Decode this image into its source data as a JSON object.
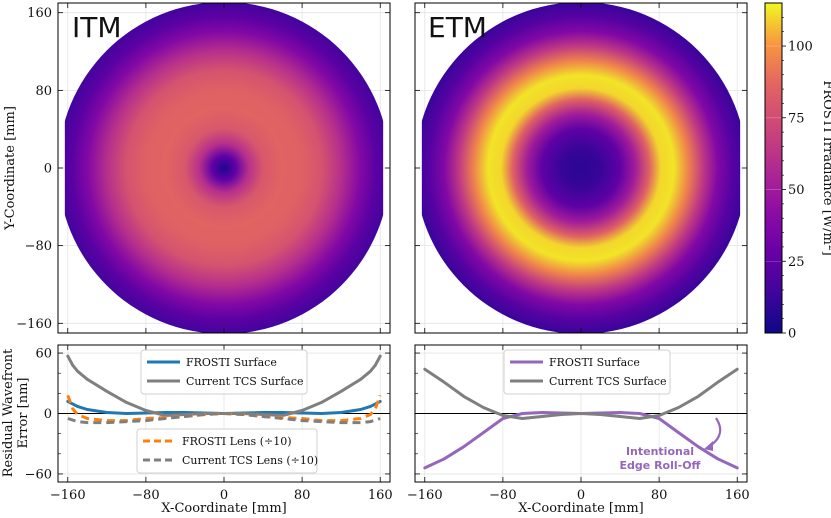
{
  "chart_data": [
    {
      "type": "heatmap",
      "panel": "itm",
      "title": "ITM",
      "ylabel": "Y-Coordinate [mm]",
      "xlim": [
        -170,
        170
      ],
      "ylim": [
        -170,
        170
      ],
      "yticks": [
        -160,
        -80,
        0,
        80,
        160
      ],
      "ytick_labels": [
        "−160",
        "−80",
        "0",
        "80",
        "160"
      ],
      "aperture_radius_mm": 170,
      "flat_halfwidth_mm": 163,
      "radial_profile": {
        "r": [
          0,
          12,
          25,
          40,
          60,
          80,
          100,
          120,
          140,
          155,
          170
        ],
        "irradiance": [
          5,
          25,
          60,
          80,
          86,
          85,
          78,
          60,
          38,
          24,
          15
        ]
      },
      "grid": true
    },
    {
      "type": "heatmap",
      "panel": "etm",
      "title": "ETM",
      "xlim": [
        -170,
        170
      ],
      "ylim": [
        -170,
        170
      ],
      "aperture_radius_mm": 170,
      "flat_halfwidth_mm": 163,
      "radial_profile": {
        "r": [
          0,
          20,
          40,
          55,
          70,
          82,
          95,
          110,
          125,
          140,
          155,
          170
        ],
        "irradiance": [
          8,
          12,
          25,
          50,
          85,
          110,
          112,
          95,
          65,
          38,
          22,
          12
        ]
      },
      "grid": true
    },
    {
      "type": "colorbar",
      "label": "FROSTI Irradiance [W/m²]",
      "label_main": "FROSTI Irradiance [W/m",
      "label_sup": "2",
      "label_end": "]",
      "range": [
        0,
        115
      ],
      "ticks": [
        0,
        25,
        50,
        75,
        100
      ],
      "colormap": "plasma"
    },
    {
      "type": "line",
      "panel": "itm-residual",
      "ylabel_line1": "Residual Wavefront",
      "ylabel_line2": "Error [nm]",
      "xlabel": "X-Coordinate [mm]",
      "xlim": [
        -170,
        170
      ],
      "ylim": [
        -68,
        68
      ],
      "xticks": [
        -160,
        -80,
        0,
        80,
        160
      ],
      "xtick_labels": [
        "−160",
        "−80",
        "0",
        "80",
        "160"
      ],
      "yticks": [
        -60,
        0,
        60
      ],
      "ytick_labels": [
        "−60",
        "0",
        "60"
      ],
      "zero_line": true,
      "grid": true,
      "series": [
        {
          "name": "FROSTI Surface",
          "color": "#1f77b4",
          "dash": "solid",
          "x": [
            -160,
            -150,
            -140,
            -120,
            -100,
            -80,
            -60,
            -40,
            -20,
            0,
            20,
            40,
            60,
            80,
            100,
            120,
            140,
            150,
            160
          ],
          "y": [
            12,
            7,
            4,
            1,
            0,
            0.5,
            1,
            1,
            0.5,
            0,
            0.5,
            1,
            1,
            0.5,
            0,
            1,
            4,
            7,
            12
          ]
        },
        {
          "name": "Current TCS Surface",
          "color": "#7f7f7f",
          "dash": "solid",
          "x": [
            -160,
            -155,
            -150,
            -140,
            -120,
            -100,
            -80,
            -60,
            -40,
            -20,
            0,
            20,
            40,
            60,
            80,
            100,
            120,
            140,
            150,
            155,
            160
          ],
          "y": [
            57,
            48,
            42,
            34,
            22,
            11,
            3,
            -2,
            -1,
            0,
            0,
            0,
            -1,
            -2,
            3,
            11,
            22,
            34,
            42,
            48,
            57
          ]
        },
        {
          "name": "FROSTI Lens (÷10)",
          "color": "#ff7f0e",
          "dash": "dashed",
          "x": [
            -160,
            -155,
            -150,
            -140,
            -120,
            -100,
            -80,
            -60,
            -40,
            -20,
            0,
            20,
            40,
            60,
            80,
            100,
            120,
            140,
            150,
            155,
            160
          ],
          "y": [
            18,
            5,
            -1,
            -5,
            -7,
            -7,
            -5,
            -4,
            -3,
            -1,
            0,
            -1,
            -3,
            -4,
            -5,
            -7,
            -7,
            -5,
            -1,
            5,
            18
          ]
        },
        {
          "name": "Current TCS Lens (÷10)",
          "color": "#7f7f7f",
          "dash": "dashed",
          "x": [
            -160,
            -150,
            -140,
            -120,
            -100,
            -80,
            -60,
            -40,
            -20,
            0,
            20,
            40,
            60,
            80,
            100,
            120,
            140,
            150,
            160
          ],
          "y": [
            -5,
            -8,
            -9,
            -9,
            -8,
            -7,
            -5,
            -3,
            -1,
            0,
            -1,
            -3,
            -5,
            -7,
            -8,
            -9,
            -9,
            -8,
            -5
          ]
        }
      ]
    },
    {
      "type": "line",
      "panel": "etm-residual",
      "xlabel": "X-Coordinate [mm]",
      "xlim": [
        -170,
        170
      ],
      "ylim": [
        -68,
        68
      ],
      "xticks": [
        -160,
        -80,
        0,
        80,
        160
      ],
      "xtick_labels": [
        "−160",
        "−80",
        "0",
        "80",
        "160"
      ],
      "zero_line": true,
      "grid": true,
      "annotation": {
        "line1": "Intentional",
        "line2": "Edge Roll-Off"
      },
      "series": [
        {
          "name": "FROSTI Surface",
          "color": "#9467bd",
          "dash": "solid",
          "x": [
            -160,
            -140,
            -120,
            -100,
            -80,
            -60,
            -40,
            -20,
            0,
            20,
            40,
            60,
            80,
            100,
            120,
            140,
            160
          ],
          "y": [
            -54,
            -45,
            -33,
            -19,
            -5,
            0,
            1,
            0.5,
            0,
            0.5,
            1,
            0,
            -5,
            -19,
            -33,
            -45,
            -54
          ]
        },
        {
          "name": "Current TCS Surface",
          "color": "#7f7f7f",
          "dash": "solid",
          "x": [
            -160,
            -140,
            -120,
            -100,
            -80,
            -60,
            -40,
            -20,
            0,
            20,
            40,
            60,
            80,
            100,
            120,
            140,
            160
          ],
          "y": [
            44,
            31,
            17,
            6,
            -2,
            -5,
            -3,
            -1,
            0,
            -1,
            -3,
            -5,
            -2,
            6,
            17,
            31,
            44
          ]
        }
      ]
    }
  ]
}
